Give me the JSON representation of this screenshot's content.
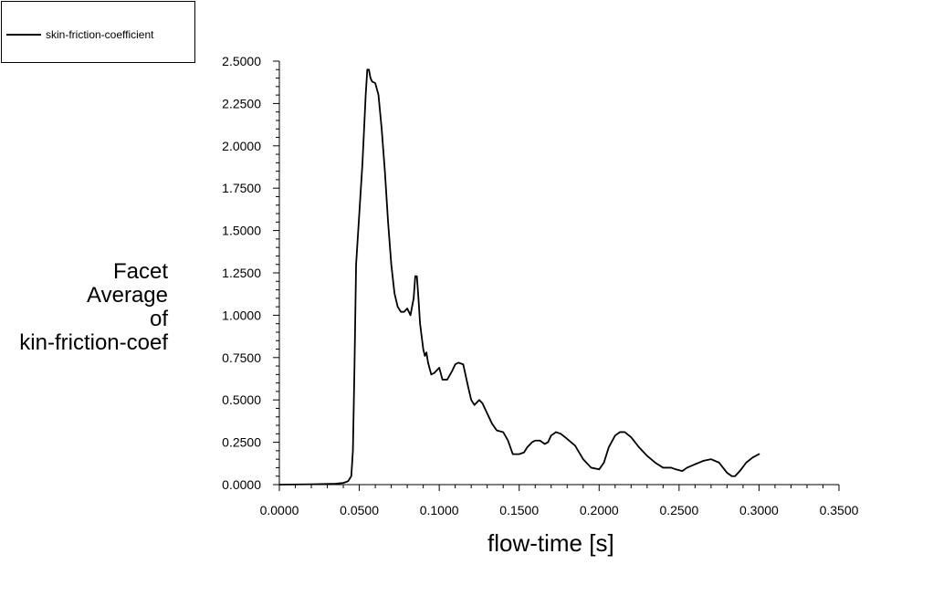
{
  "legend": {
    "entry": "skin-friction-coefficient"
  },
  "chart_data": {
    "type": "line",
    "xlabel": "flow-time [s]",
    "ylabel": [
      "Facet",
      "Average",
      "of",
      "kin-friction-coef"
    ],
    "xlim": [
      0,
      0.35
    ],
    "ylim": [
      0,
      2.5
    ],
    "x_ticks": [
      "0.0000",
      "0.0500",
      "0.1000",
      "0.1500",
      "0.2000",
      "0.2500",
      "0.3000",
      "0.3500"
    ],
    "y_ticks": [
      "0.0000",
      "0.2500",
      "0.5000",
      "0.7500",
      "1.0000",
      "1.2500",
      "1.5000",
      "1.7500",
      "2.0000",
      "2.2500",
      "2.5000"
    ],
    "grid": false,
    "legend_position": "top-left",
    "series": [
      {
        "name": "skin-friction-coefficient",
        "color": "#000000",
        "x": [
          0.0,
          0.02,
          0.035,
          0.04,
          0.043,
          0.045,
          0.046,
          0.047,
          0.048,
          0.05,
          0.052,
          0.054,
          0.055,
          0.056,
          0.057,
          0.058,
          0.06,
          0.062,
          0.064,
          0.066,
          0.068,
          0.07,
          0.072,
          0.074,
          0.076,
          0.078,
          0.08,
          0.082,
          0.084,
          0.085,
          0.086,
          0.087,
          0.088,
          0.09,
          0.091,
          0.092,
          0.093,
          0.095,
          0.097,
          0.1,
          0.102,
          0.105,
          0.108,
          0.11,
          0.112,
          0.115,
          0.118,
          0.12,
          0.122,
          0.125,
          0.127,
          0.13,
          0.133,
          0.136,
          0.14,
          0.143,
          0.146,
          0.148,
          0.15,
          0.153,
          0.155,
          0.158,
          0.16,
          0.163,
          0.166,
          0.168,
          0.17,
          0.173,
          0.176,
          0.18,
          0.185,
          0.19,
          0.195,
          0.2,
          0.203,
          0.206,
          0.21,
          0.213,
          0.216,
          0.22,
          0.225,
          0.23,
          0.235,
          0.24,
          0.245,
          0.248,
          0.252,
          0.255,
          0.26,
          0.265,
          0.27,
          0.275,
          0.28,
          0.283,
          0.285,
          0.288,
          0.292,
          0.296,
          0.3
        ],
        "values": [
          0.0,
          0.002,
          0.005,
          0.01,
          0.02,
          0.05,
          0.2,
          0.7,
          1.3,
          1.6,
          1.9,
          2.3,
          2.45,
          2.45,
          2.4,
          2.38,
          2.37,
          2.3,
          2.1,
          1.85,
          1.55,
          1.3,
          1.13,
          1.05,
          1.02,
          1.02,
          1.04,
          1.0,
          1.1,
          1.23,
          1.23,
          1.1,
          0.95,
          0.8,
          0.76,
          0.78,
          0.72,
          0.65,
          0.66,
          0.69,
          0.62,
          0.62,
          0.67,
          0.71,
          0.72,
          0.71,
          0.58,
          0.5,
          0.47,
          0.5,
          0.48,
          0.42,
          0.36,
          0.32,
          0.31,
          0.26,
          0.18,
          0.18,
          0.18,
          0.19,
          0.22,
          0.25,
          0.26,
          0.26,
          0.24,
          0.25,
          0.29,
          0.31,
          0.3,
          0.27,
          0.23,
          0.15,
          0.1,
          0.09,
          0.13,
          0.22,
          0.29,
          0.31,
          0.31,
          0.28,
          0.22,
          0.17,
          0.13,
          0.1,
          0.1,
          0.09,
          0.08,
          0.1,
          0.12,
          0.14,
          0.15,
          0.13,
          0.07,
          0.05,
          0.05,
          0.08,
          0.13,
          0.16,
          0.18
        ]
      }
    ]
  }
}
